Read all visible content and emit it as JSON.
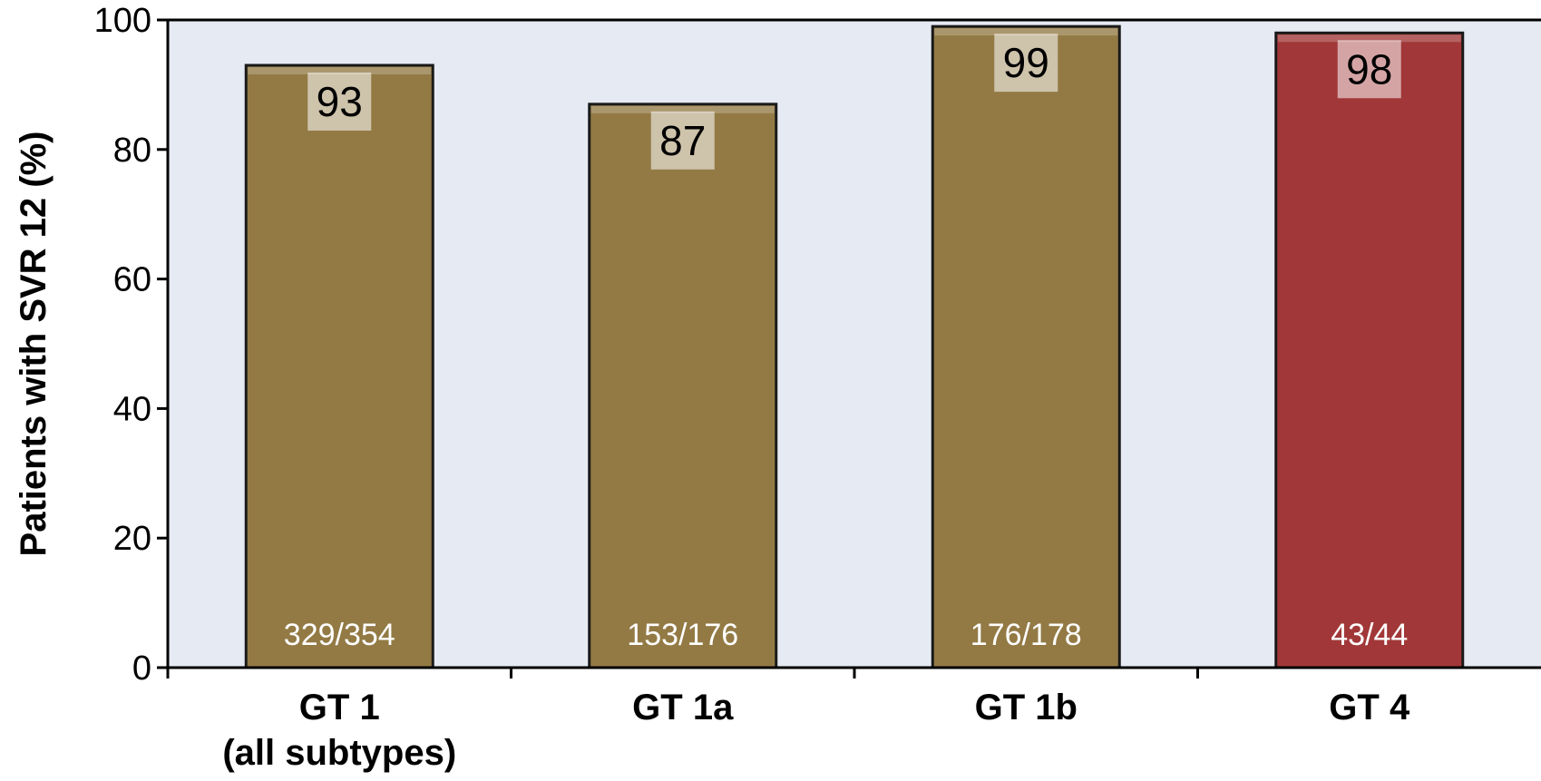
{
  "chart_data": {
    "type": "bar",
    "title": "",
    "xlabel": "",
    "ylabel": "Patients with SVR 12 (%)",
    "ylim": [
      0,
      100
    ],
    "yticks": [
      "0",
      "20",
      "40",
      "60",
      "80",
      "100"
    ],
    "grid": false,
    "categories": [
      {
        "line1": "GT 1",
        "line2": "(all subtypes)"
      },
      {
        "line1": "GT 1a",
        "line2": ""
      },
      {
        "line1": "GT 1b",
        "line2": ""
      },
      {
        "line1": "GT 4",
        "line2": ""
      }
    ],
    "values": [
      93,
      87,
      99,
      98
    ],
    "value_labels": [
      "93",
      "87",
      "99",
      "98"
    ],
    "n_labels": [
      "329/354",
      "153/176",
      "176/178",
      "43/44"
    ],
    "bar_colors": [
      "#937A45",
      "#937A45",
      "#937A45",
      "#A13738"
    ],
    "background_color": "#E6EAF2"
  }
}
